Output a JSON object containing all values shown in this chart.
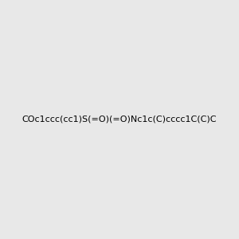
{
  "smiles": "COc1ccc(cc1)S(=O)(=O)Nc1c(C)cccc1C(C)C",
  "title": "",
  "bg_color": "#e8e8e8",
  "img_size": [
    300,
    300
  ]
}
